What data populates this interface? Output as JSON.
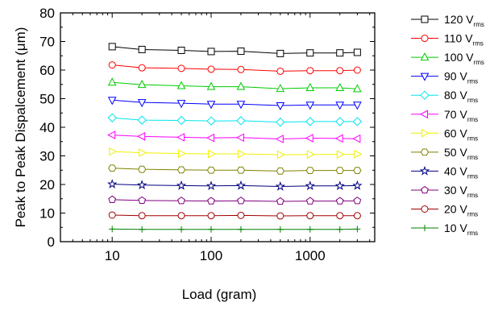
{
  "chart_data": {
    "type": "line",
    "xlabel": "Load (gram)",
    "ylabel": "Peak to Peak Dispalcement (μm)",
    "xscale": "log",
    "xlim": [
      3,
      4500
    ],
    "ylim": [
      0,
      80
    ],
    "x_ticks": [
      10,
      100,
      1000
    ],
    "x_tick_labels": [
      "10",
      "100",
      "1000"
    ],
    "y_ticks": [
      0,
      10,
      20,
      30,
      40,
      50,
      60,
      70,
      80
    ],
    "y_tick_labels": [
      "0",
      "10",
      "20",
      "30",
      "40",
      "50",
      "60",
      "70",
      "80"
    ],
    "grid": false,
    "legend_position": "right",
    "x": [
      10,
      20,
      50,
      100,
      200,
      500,
      1000,
      2000,
      3000
    ],
    "series": [
      {
        "name": "120 V",
        "name_sub": "rms",
        "color": "#000000",
        "marker": "square",
        "values": [
          68.2,
          67.2,
          66.9,
          66.5,
          66.6,
          65.8,
          66.0,
          66.0,
          66.2
        ]
      },
      {
        "name": "110 V",
        "name_sub": "rms",
        "color": "#ff0000",
        "marker": "circle",
        "values": [
          61.8,
          60.8,
          60.6,
          60.3,
          60.2,
          59.6,
          59.8,
          59.8,
          60.0
        ]
      },
      {
        "name": "100 V",
        "name_sub": "rms",
        "color": "#00cc00",
        "marker": "triangle-up",
        "values": [
          55.7,
          54.9,
          54.5,
          54.2,
          54.2,
          53.5,
          53.8,
          53.8,
          53.4
        ]
      },
      {
        "name": "90 V",
        "name_sub": "rms",
        "color": "#0000ff",
        "marker": "triangle-down",
        "values": [
          49.5,
          48.7,
          48.4,
          48.1,
          48.1,
          47.6,
          47.8,
          47.8,
          47.8
        ]
      },
      {
        "name": "80 V",
        "name_sub": "rms",
        "color": "#00e5ee",
        "marker": "diamond",
        "values": [
          43.3,
          42.5,
          42.4,
          42.2,
          42.3,
          41.8,
          42.0,
          42.0,
          42.0
        ]
      },
      {
        "name": "70 V",
        "name_sub": "rms",
        "color": "#ff00ff",
        "marker": "triangle-left",
        "values": [
          37.3,
          36.8,
          36.5,
          36.3,
          36.4,
          35.9,
          36.2,
          36.1,
          36.0
        ]
      },
      {
        "name": "60 V",
        "name_sub": "rms",
        "color": "#f0f000",
        "marker": "triangle-right",
        "values": [
          31.5,
          31.1,
          30.8,
          30.7,
          30.7,
          30.4,
          30.5,
          30.5,
          30.6
        ]
      },
      {
        "name": "50 V",
        "name_sub": "rms",
        "color": "#808000",
        "marker": "hexagon",
        "values": [
          25.7,
          25.3,
          25.1,
          25.0,
          25.0,
          24.7,
          24.9,
          24.9,
          24.9
        ]
      },
      {
        "name": "40 V",
        "name_sub": "rms",
        "color": "#000080",
        "marker": "star",
        "values": [
          20.1,
          19.8,
          19.6,
          19.5,
          19.6,
          19.3,
          19.5,
          19.5,
          19.6
        ]
      },
      {
        "name": "30 V",
        "name_sub": "rms",
        "color": "#800080",
        "marker": "pentagon",
        "values": [
          14.7,
          14.4,
          14.3,
          14.2,
          14.3,
          14.1,
          14.2,
          14.2,
          14.3
        ]
      },
      {
        "name": "20 V",
        "name_sub": "rms",
        "color": "#a00000",
        "marker": "circle",
        "values": [
          9.3,
          9.1,
          9.1,
          9.1,
          9.2,
          9.0,
          9.1,
          9.1,
          9.1
        ]
      },
      {
        "name": "10 V",
        "name_sub": "rms",
        "color": "#008000",
        "marker": "plus",
        "values": [
          4.4,
          4.3,
          4.3,
          4.3,
          4.3,
          4.3,
          4.3,
          4.3,
          4.4
        ]
      }
    ]
  }
}
